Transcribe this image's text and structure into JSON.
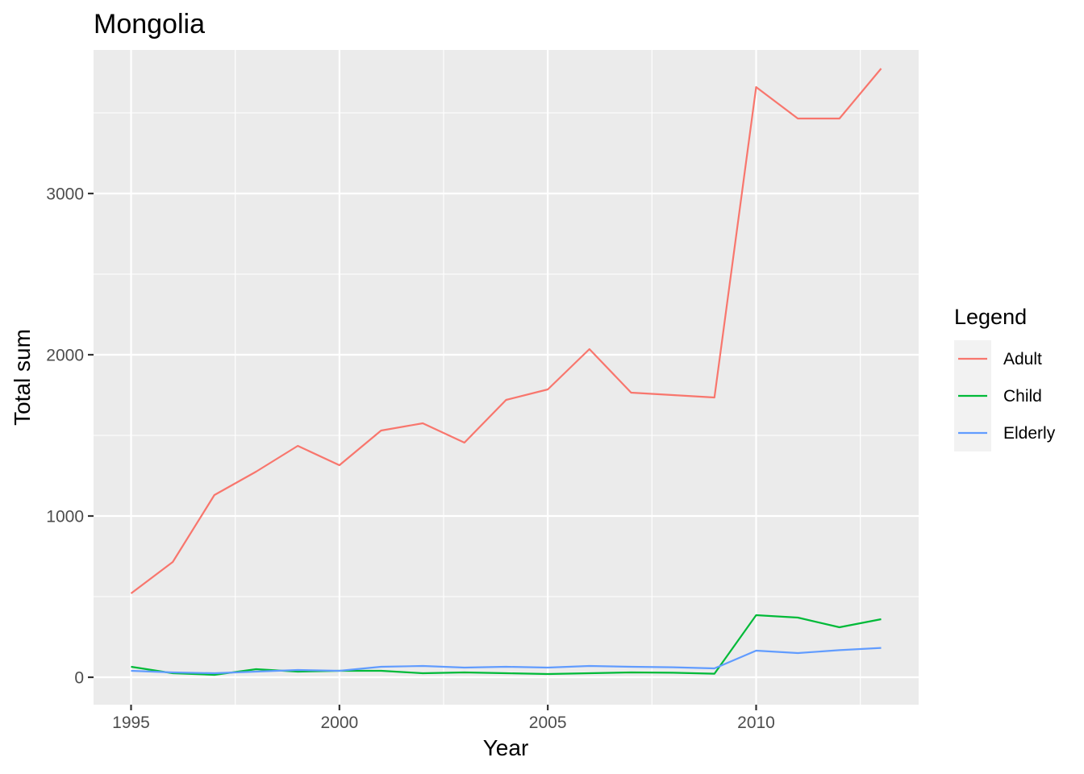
{
  "chart_data": {
    "type": "line",
    "title": "Mongolia",
    "xlabel": "Year",
    "ylabel": "Total sum",
    "x": [
      1995,
      1996,
      1997,
      1998,
      1999,
      2000,
      2001,
      2002,
      2003,
      2004,
      2005,
      2006,
      2007,
      2008,
      2009,
      2010,
      2011,
      2012,
      2013
    ],
    "xlim": [
      1994.1,
      2013.9
    ],
    "ylim": [
      -170,
      3890
    ],
    "x_ticks": [
      1995,
      2000,
      2005,
      2010
    ],
    "x_tick_labels": [
      "1995",
      "2000",
      "2005",
      "2010"
    ],
    "y_ticks": [
      0,
      1000,
      2000,
      3000
    ],
    "y_tick_labels": [
      "0",
      "1000",
      "2000",
      "3000"
    ],
    "grid": true,
    "legend": {
      "title": "Legend",
      "placement": "right"
    },
    "series": [
      {
        "name": "Adult",
        "color": "#F8766D",
        "values": [
          520,
          715,
          1130,
          1275,
          1435,
          1315,
          1530,
          1575,
          1455,
          1720,
          1785,
          2035,
          1765,
          1750,
          1735,
          3660,
          3465,
          3465,
          3775
        ]
      },
      {
        "name": "Child",
        "color": "#00BA38",
        "values": [
          65,
          25,
          15,
          50,
          35,
          40,
          40,
          25,
          30,
          25,
          20,
          25,
          30,
          28,
          22,
          385,
          370,
          310,
          360
        ]
      },
      {
        "name": "Elderly",
        "color": "#619CFF",
        "values": [
          40,
          30,
          25,
          35,
          45,
          40,
          65,
          70,
          60,
          65,
          60,
          70,
          65,
          62,
          55,
          165,
          150,
          168,
          182
        ]
      }
    ]
  }
}
